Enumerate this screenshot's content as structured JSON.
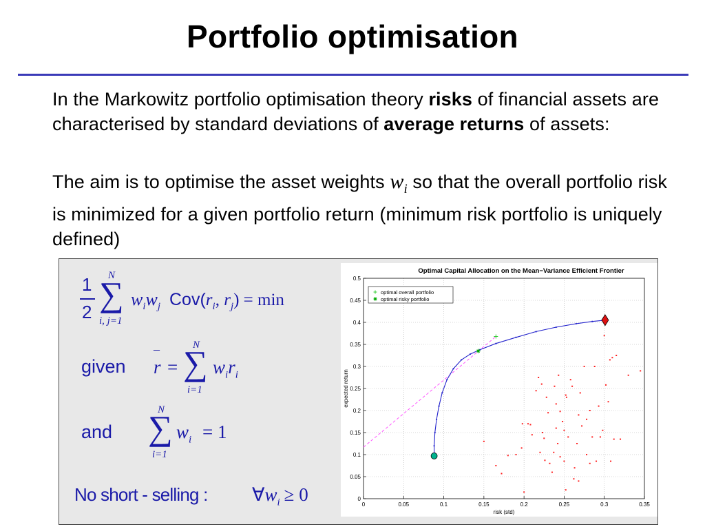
{
  "slide": {
    "title": "Portfolio optimisation",
    "para1": {
      "part1": "In the Markowitz portfolio optimisation theory ",
      "bold1": "risks",
      "part2": " of financial assets are characterised by standard deviations of ",
      "bold2": "average returns",
      "part3": " of assets:"
    },
    "para2": {
      "part1": "The aim is to optimise the asset weights ",
      "var_w": "w",
      "var_i": "i",
      "part2": " so that the overall portfolio risk is minimized for a given portfolio return (minimum risk portfolio is uniquely defined)"
    }
  },
  "formulas": {
    "eq1": {
      "frac_num": "1",
      "frac_den": "2",
      "sum_top": "N",
      "sum_bottom": "i, j=1",
      "w1": "w",
      "w1_sub": "i",
      "w2": "w",
      "w2_sub": "j",
      "cov": "Cov(",
      "r1": "r",
      "r1_sub": "i",
      "comma": ", ",
      "r2": "r",
      "r2_sub": "j",
      "close": ") = min"
    },
    "eq2": {
      "label": "given",
      "rbar": "r",
      "bar": "–",
      "equals": "=",
      "sum_top": "N",
      "sum_bottom": "i=1",
      "w": "w",
      "w_sub": "i",
      "r": "r",
      "r_sub": "i"
    },
    "eq3": {
      "label": "and",
      "sum_top": "N",
      "sum_bottom": "i=1",
      "w": "w",
      "w_sub": "i",
      "rhs": "= 1"
    },
    "constraint": {
      "text": "No short - selling :",
      "forall": "∀",
      "w": "w",
      "w_sub": "i",
      "rhs": "≥ 0"
    }
  },
  "chart_data": {
    "type": "scatter",
    "title": "Optimal Capital Allocation on the Mean−Variance Efficient Frontier",
    "xlabel": "risk (std)",
    "ylabel": "expected return",
    "xlim": [
      0,
      0.35
    ],
    "ylim": [
      0,
      0.5
    ],
    "x_ticks": [
      "0",
      "0.05",
      "0.1",
      "0.15",
      "0.2",
      "0.25",
      "0.3",
      "0.35"
    ],
    "y_ticks": [
      "0",
      "0.05",
      "0.1",
      "0.15",
      "0.2",
      "0.25",
      "0.3",
      "0.35",
      "0.4",
      "0.45",
      "0.5"
    ],
    "grid": true,
    "legend_position": "top-left",
    "legend": [
      {
        "label": "optimal overall portfolio",
        "color": "#33cc33",
        "marker": "+"
      },
      {
        "label": "optimal risky portfolio",
        "color": "#00aa00",
        "marker": "*"
      }
    ],
    "frontier_color": "#2222cc",
    "frontier": [
      [
        0.088,
        0.097
      ],
      [
        0.088,
        0.12
      ],
      [
        0.089,
        0.15
      ],
      [
        0.091,
        0.18
      ],
      [
        0.094,
        0.21
      ],
      [
        0.098,
        0.24
      ],
      [
        0.104,
        0.27
      ],
      [
        0.112,
        0.295
      ],
      [
        0.122,
        0.315
      ],
      [
        0.133,
        0.328
      ],
      [
        0.145,
        0.338
      ],
      [
        0.165,
        0.352
      ],
      [
        0.19,
        0.366
      ],
      [
        0.215,
        0.379
      ],
      [
        0.24,
        0.389
      ],
      [
        0.265,
        0.397
      ],
      [
        0.285,
        0.402
      ],
      [
        0.301,
        0.405
      ]
    ],
    "cal_color": "#ff55ff",
    "cal_line": [
      [
        0,
        0.117
      ],
      [
        0.165,
        0.368
      ]
    ],
    "min_risk_point": {
      "x": 0.088,
      "y": 0.097,
      "color": "#00b38f"
    },
    "max_return_point": {
      "x": 0.301,
      "y": 0.405,
      "color": "#dd1111"
    },
    "optimal_overall": {
      "x": 0.165,
      "y": 0.368
    },
    "optimal_risky": {
      "x": 0.143,
      "y": 0.335
    },
    "asset_color": "#ff2222",
    "assets": [
      [
        0.15,
        0.13
      ],
      [
        0.165,
        0.075
      ],
      [
        0.172,
        0.057
      ],
      [
        0.18,
        0.098
      ],
      [
        0.19,
        0.1
      ],
      [
        0.197,
        0.115
      ],
      [
        0.2,
        0.015
      ],
      [
        0.198,
        0.17
      ],
      [
        0.205,
        0.17
      ],
      [
        0.208,
        0.168
      ],
      [
        0.21,
        0.145
      ],
      [
        0.215,
        0.245
      ],
      [
        0.218,
        0.275
      ],
      [
        0.22,
        0.105
      ],
      [
        0.222,
        0.26
      ],
      [
        0.223,
        0.15
      ],
      [
        0.225,
        0.137
      ],
      [
        0.226,
        0.087
      ],
      [
        0.228,
        0.23
      ],
      [
        0.23,
        0.195
      ],
      [
        0.232,
        0.08
      ],
      [
        0.235,
        0.06
      ],
      [
        0.237,
        0.105
      ],
      [
        0.238,
        0.255
      ],
      [
        0.24,
        0.215
      ],
      [
        0.24,
        0.16
      ],
      [
        0.242,
        0.125
      ],
      [
        0.243,
        0.28
      ],
      [
        0.245,
        0.198
      ],
      [
        0.245,
        0.095
      ],
      [
        0.248,
        0.175
      ],
      [
        0.25,
        0.155
      ],
      [
        0.25,
        0.085
      ],
      [
        0.252,
        0.235
      ],
      [
        0.253,
        0.23
      ],
      [
        0.255,
        0.14
      ],
      [
        0.258,
        0.27
      ],
      [
        0.26,
        0.255
      ],
      [
        0.262,
        0.045
      ],
      [
        0.263,
        0.07
      ],
      [
        0.266,
        0.125
      ],
      [
        0.268,
        0.19
      ],
      [
        0.27,
        0.24
      ],
      [
        0.272,
        0.165
      ],
      [
        0.275,
        0.3
      ],
      [
        0.278,
        0.18
      ],
      [
        0.278,
        0.1
      ],
      [
        0.282,
        0.08
      ],
      [
        0.285,
        0.14
      ],
      [
        0.288,
        0.3
      ],
      [
        0.29,
        0.085
      ],
      [
        0.293,
        0.21
      ],
      [
        0.295,
        0.14
      ],
      [
        0.298,
        0.155
      ],
      [
        0.3,
        0.37
      ],
      [
        0.302,
        0.258
      ],
      [
        0.305,
        0.22
      ],
      [
        0.307,
        0.315
      ],
      [
        0.308,
        0.085
      ],
      [
        0.31,
        0.32
      ],
      [
        0.312,
        0.135
      ],
      [
        0.315,
        0.325
      ],
      [
        0.32,
        0.135
      ],
      [
        0.33,
        0.28
      ],
      [
        0.345,
        0.29
      ],
      [
        0.268,
        0.04
      ],
      [
        0.252,
        0.02
      ],
      [
        0.282,
        0.2
      ]
    ]
  }
}
